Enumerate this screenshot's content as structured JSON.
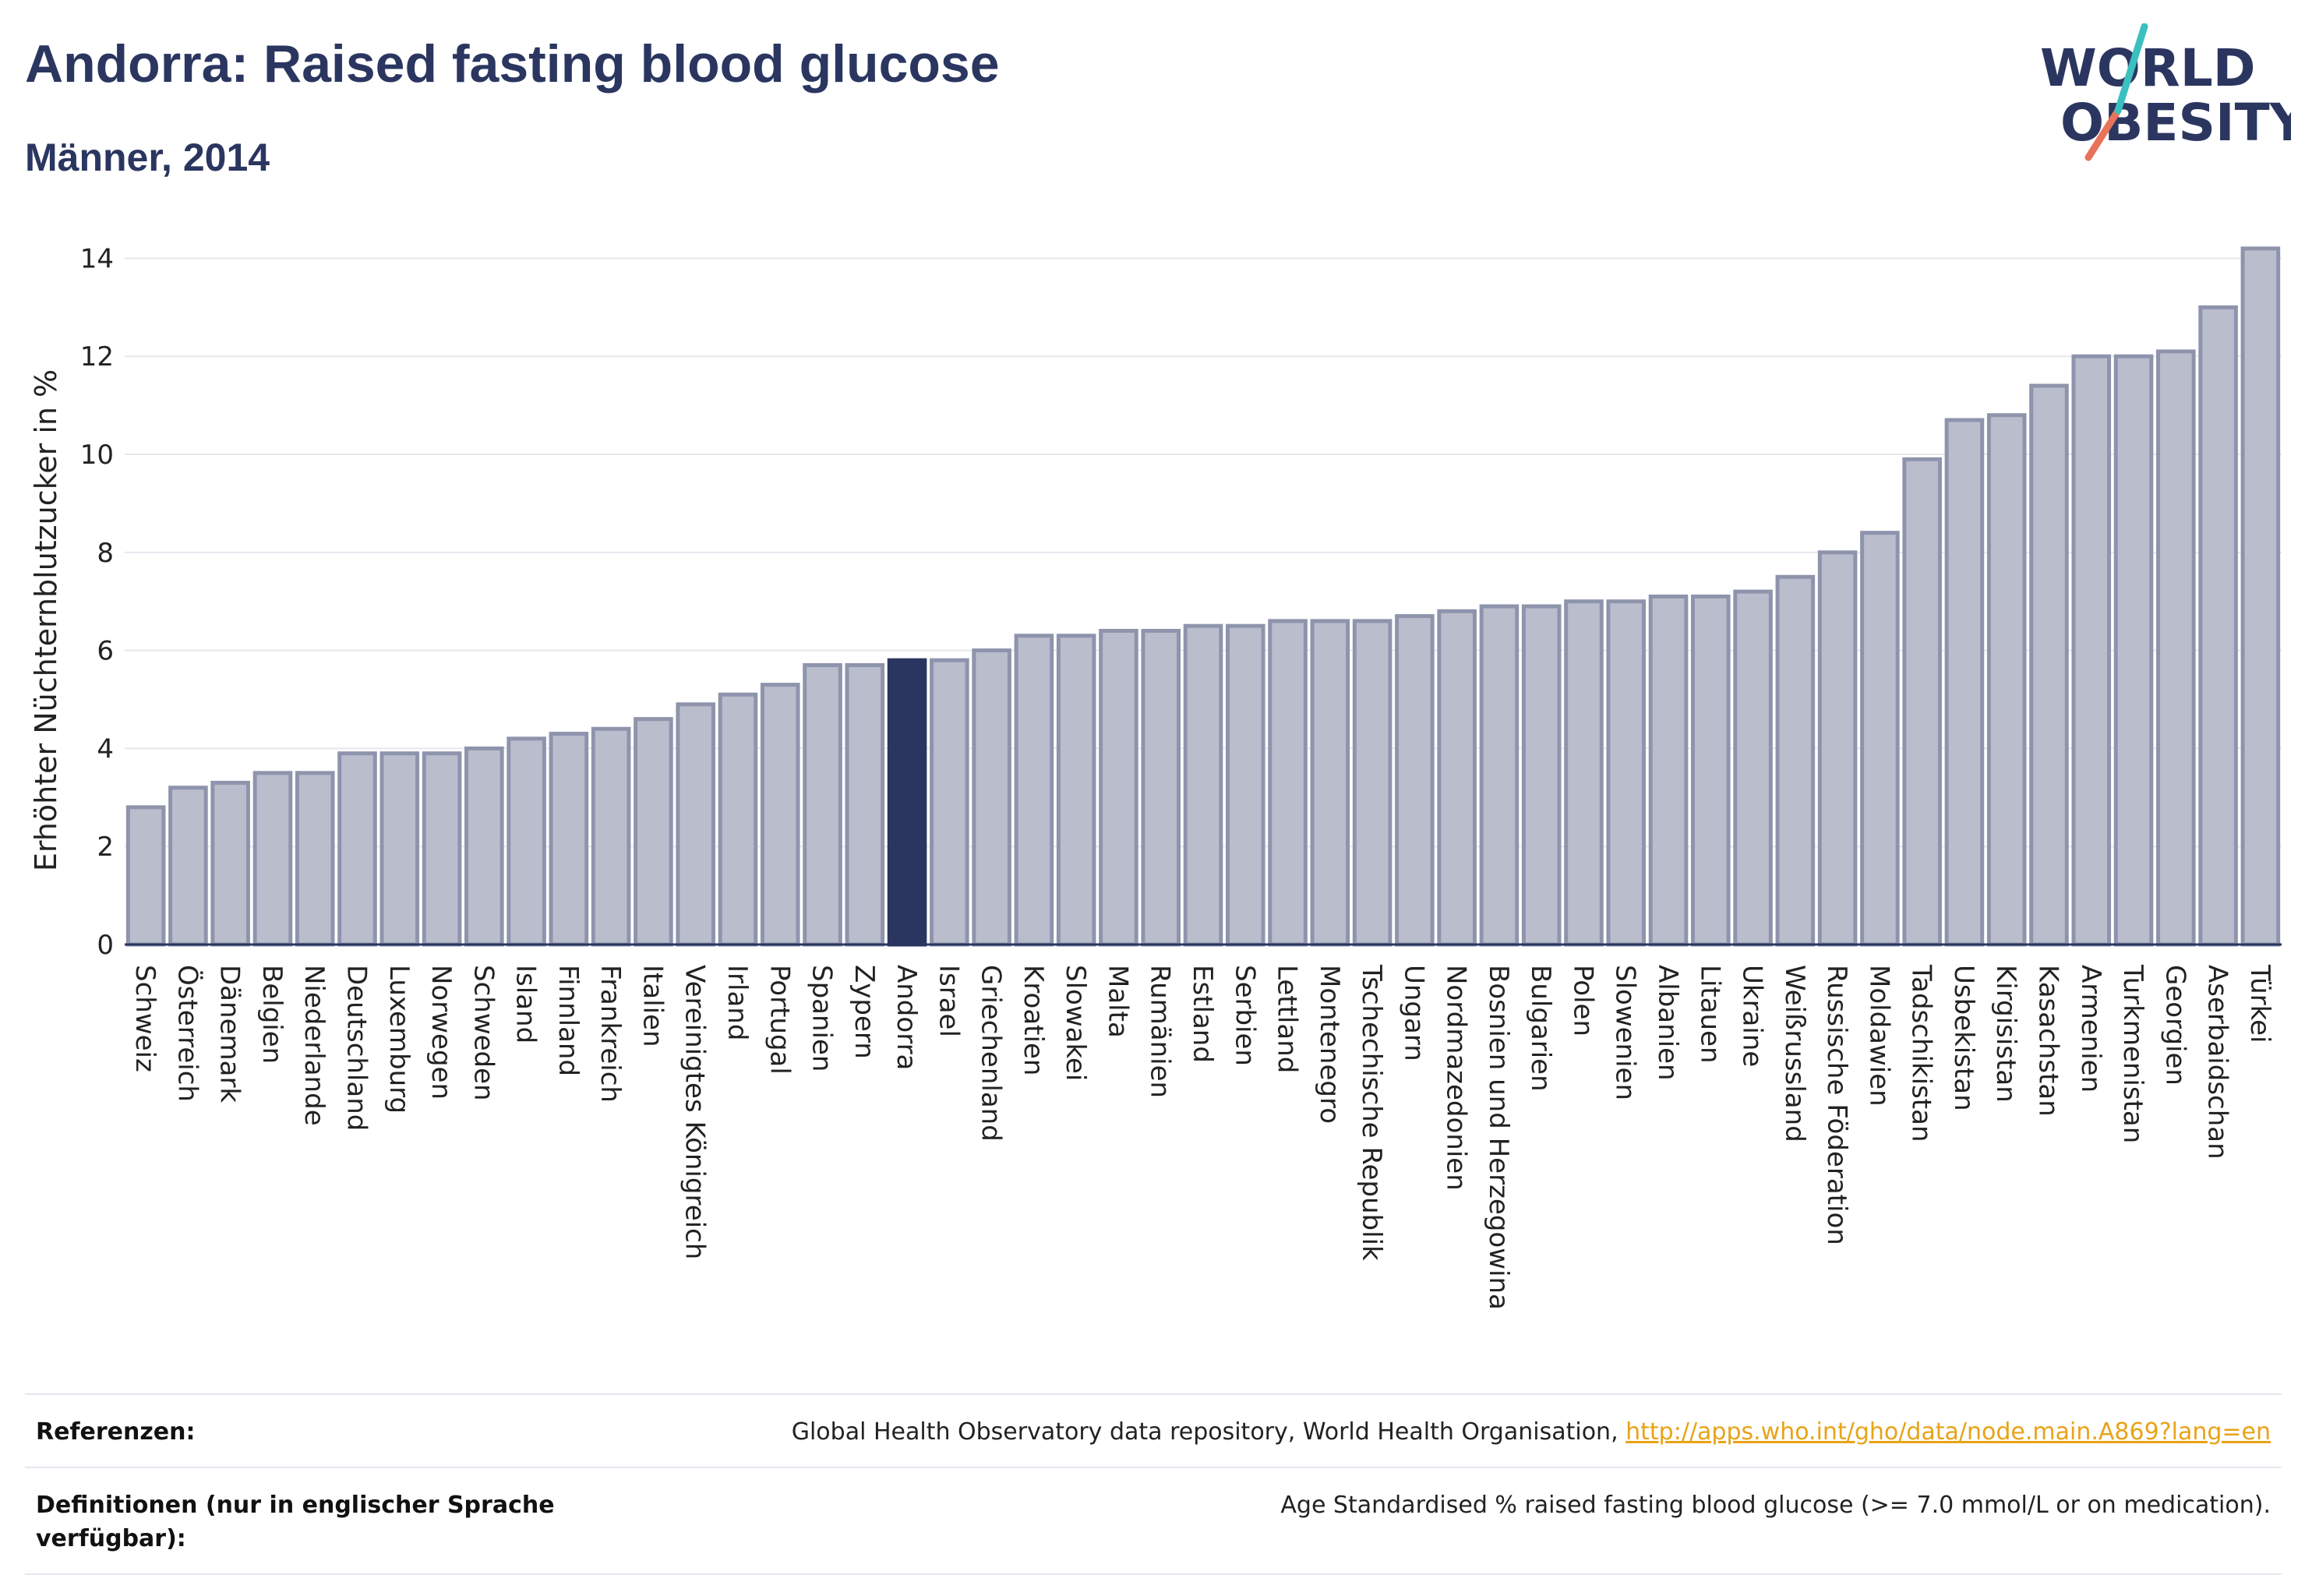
{
  "title": "Andorra: Raised fasting blood glucose",
  "subtitle": "Männer, 2014",
  "logo": {
    "line1": "WORLD",
    "line2": "OBESITY",
    "accent_colors": [
      "#3bbfbf",
      "#e8735a"
    ]
  },
  "colors": {
    "bar": "#b9bdcc",
    "bar_border": "#8e94ac",
    "highlight": "#2b3660",
    "grid": "#e6e8ee"
  },
  "chart_data": {
    "type": "bar",
    "title": "Andorra: Raised fasting blood glucose",
    "subtitle": "Männer, 2014",
    "ylabel": "Erhöhter Nüchternblutzucker in %",
    "xlabel": "",
    "ylim": [
      0,
      14.5
    ],
    "yticks": [
      "0",
      "2",
      "4",
      "6",
      "8",
      "10",
      "12",
      "14"
    ],
    "grid": true,
    "highlight": "Andorra",
    "categories": [
      "Schweiz",
      "Österreich",
      "Dänemark",
      "Belgien",
      "Niederlande",
      "Deutschland",
      "Luxemburg",
      "Norwegen",
      "Schweden",
      "Island",
      "Finnland",
      "Frankreich",
      "Italien",
      "Vereinigtes Königreich",
      "Irland",
      "Portugal",
      "Spanien",
      "Zypern",
      "Andorra",
      "Israel",
      "Griechenland",
      "Kroatien",
      "Slowakei",
      "Malta",
      "Rumänien",
      "Estland",
      "Serbien",
      "Lettland",
      "Montenegro",
      "Tschechische Republik",
      "Ungarn",
      "Nordmazedonien",
      "Bosnien und Herzegowina",
      "Bulgarien",
      "Polen",
      "Slowenien",
      "Albanien",
      "Litauen",
      "Ukraine",
      "Weißrussland",
      "Russische Föderation",
      "Moldawien",
      "Tadschikistan",
      "Usbekistan",
      "Kirgisistan",
      "Kasachstan",
      "Armenien",
      "Turkmenistan",
      "Georgien",
      "Aserbaidschan",
      "Türkei"
    ],
    "values": [
      2.8,
      3.2,
      3.3,
      3.5,
      3.5,
      3.9,
      3.9,
      3.9,
      4.0,
      4.2,
      4.3,
      4.4,
      4.6,
      4.9,
      5.1,
      5.3,
      5.7,
      5.7,
      5.8,
      5.8,
      6.0,
      6.3,
      6.3,
      6.4,
      6.4,
      6.5,
      6.5,
      6.6,
      6.6,
      6.6,
      6.7,
      6.8,
      6.9,
      6.9,
      7.0,
      7.0,
      7.1,
      7.1,
      7.2,
      7.5,
      8.0,
      8.4,
      9.9,
      10.7,
      10.8,
      11.4,
      12.0,
      12.0,
      12.1,
      13.0,
      14.2
    ]
  },
  "references": {
    "ref_label": "Referenzen:",
    "ref_text": "Global Health Observatory data repository, World Health Organisation, ",
    "ref_link": "http://apps.who.int/gho/data/node.main.A869?lang=en",
    "def_label": "Definitionen (nur in englischer Sprache verfügbar):",
    "def_text": "Age Standardised % raised fasting blood glucose (>= 7.0 mmol/L or on medication)."
  }
}
